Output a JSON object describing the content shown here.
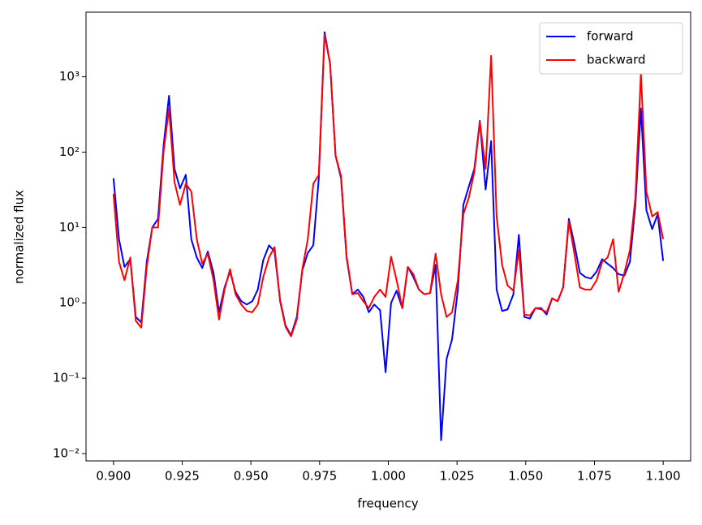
{
  "chart_data": {
    "type": "line",
    "xlabel": "frequency",
    "ylabel": "normalized flux",
    "x": [
      0.9,
      0.902,
      0.904,
      0.9061,
      0.9081,
      0.9101,
      0.9121,
      0.9141,
      0.9162,
      0.9182,
      0.9202,
      0.9222,
      0.9242,
      0.9263,
      0.9283,
      0.9303,
      0.9323,
      0.9343,
      0.9364,
      0.9384,
      0.9404,
      0.9424,
      0.9444,
      0.9465,
      0.9485,
      0.9505,
      0.9525,
      0.9545,
      0.9566,
      0.9586,
      0.9606,
      0.9626,
      0.9646,
      0.9667,
      0.9687,
      0.9707,
      0.9727,
      0.9747,
      0.9768,
      0.9788,
      0.9808,
      0.9828,
      0.9848,
      0.9869,
      0.9889,
      0.9909,
      0.9929,
      0.9949,
      0.997,
      0.999,
      1.001,
      1.003,
      1.0051,
      1.0071,
      1.0091,
      1.0111,
      1.0131,
      1.0152,
      1.0172,
      1.0192,
      1.0212,
      1.0232,
      1.0253,
      1.0273,
      1.0293,
      1.0313,
      1.0333,
      1.0354,
      1.0374,
      1.0394,
      1.0414,
      1.0434,
      1.0455,
      1.0475,
      1.0495,
      1.0515,
      1.0535,
      1.0556,
      1.0576,
      1.0596,
      1.0616,
      1.0636,
      1.0657,
      1.0677,
      1.0697,
      1.0717,
      1.0737,
      1.0758,
      1.0778,
      1.0798,
      1.0818,
      1.0838,
      1.0859,
      1.0879,
      1.0899,
      1.0919,
      1.0939,
      1.096,
      1.098,
      1.1
    ],
    "series": [
      {
        "name": "forward",
        "color": "#0000ff",
        "values": [
          45,
          7,
          3,
          3.8,
          0.65,
          0.55,
          3.5,
          10,
          13,
          120,
          560,
          60,
          33,
          50,
          7,
          4,
          2.9,
          4.8,
          2.5,
          0.75,
          1.6,
          2.6,
          1.4,
          1.05,
          0.95,
          1.05,
          1.5,
          3.7,
          5.8,
          4.8,
          1.1,
          0.5,
          0.37,
          0.65,
          2.7,
          4.6,
          5.8,
          45,
          3900,
          1500,
          90,
          45,
          4,
          1.3,
          1.5,
          1.2,
          0.75,
          0.95,
          0.8,
          0.12,
          1.0,
          1.45,
          0.85,
          3,
          2.2,
          1.5,
          1.3,
          1.35,
          3.2,
          0.015,
          0.18,
          0.33,
          1.5,
          20,
          35,
          60,
          260,
          32,
          140,
          1.5,
          0.78,
          0.82,
          1.3,
          8,
          0.65,
          0.62,
          0.85,
          0.85,
          0.7,
          1.15,
          1.05,
          1.6,
          13,
          6,
          2.5,
          2.2,
          2.1,
          2.6,
          3.8,
          3.3,
          2.9,
          2.4,
          2.3,
          3.5,
          20,
          380,
          17,
          9.5,
          15,
          3.6
        ]
      },
      {
        "name": "backward",
        "color": "#ff0000",
        "values": [
          28,
          3.5,
          2,
          4,
          0.58,
          0.47,
          3,
          10,
          10,
          100,
          380,
          40,
          20,
          38,
          30,
          7,
          3.3,
          4.5,
          2,
          0.6,
          1.5,
          2.8,
          1.3,
          0.95,
          0.78,
          0.75,
          0.95,
          2.2,
          4,
          5.5,
          1.05,
          0.48,
          0.36,
          0.6,
          2.8,
          7,
          38,
          50,
          3600,
          1500,
          90,
          48,
          4.2,
          1.3,
          1.35,
          1.05,
          0.85,
          1.2,
          1.5,
          1.2,
          4.1,
          2,
          0.85,
          3,
          2.4,
          1.5,
          1.3,
          1.35,
          4.5,
          1.3,
          0.65,
          0.75,
          2,
          15,
          25,
          55,
          250,
          60,
          1900,
          14,
          3.2,
          1.7,
          1.45,
          5,
          0.7,
          0.68,
          0.85,
          0.82,
          0.75,
          1.15,
          1.05,
          1.6,
          12,
          4.5,
          1.6,
          1.5,
          1.5,
          2,
          3.5,
          4,
          7,
          1.4,
          2.5,
          5,
          25,
          1100,
          30,
          14,
          16,
          7
        ]
      }
    ],
    "xlim": [
      0.89,
      1.11
    ],
    "xticks": [
      {
        "value": 0.9,
        "label": "0.900"
      },
      {
        "value": 0.925,
        "label": "0.925"
      },
      {
        "value": 0.95,
        "label": "0.950"
      },
      {
        "value": 0.975,
        "label": "0.975"
      },
      {
        "value": 1.0,
        "label": "1.000"
      },
      {
        "value": 1.025,
        "label": "1.025"
      },
      {
        "value": 1.05,
        "label": "1.050"
      },
      {
        "value": 1.075,
        "label": "1.075"
      },
      {
        "value": 1.1,
        "label": "1.100"
      }
    ],
    "ylim": [
      0.008,
      7200
    ],
    "ylog": true,
    "yticks": [
      {
        "value": 0.01,
        "label": "10⁻²"
      },
      {
        "value": 0.1,
        "label": "10⁻¹"
      },
      {
        "value": 1,
        "label": "10⁰"
      },
      {
        "value": 10,
        "label": "10¹"
      },
      {
        "value": 100,
        "label": "10²"
      },
      {
        "value": 1000,
        "label": "10³"
      }
    ],
    "legend": "upper right"
  }
}
